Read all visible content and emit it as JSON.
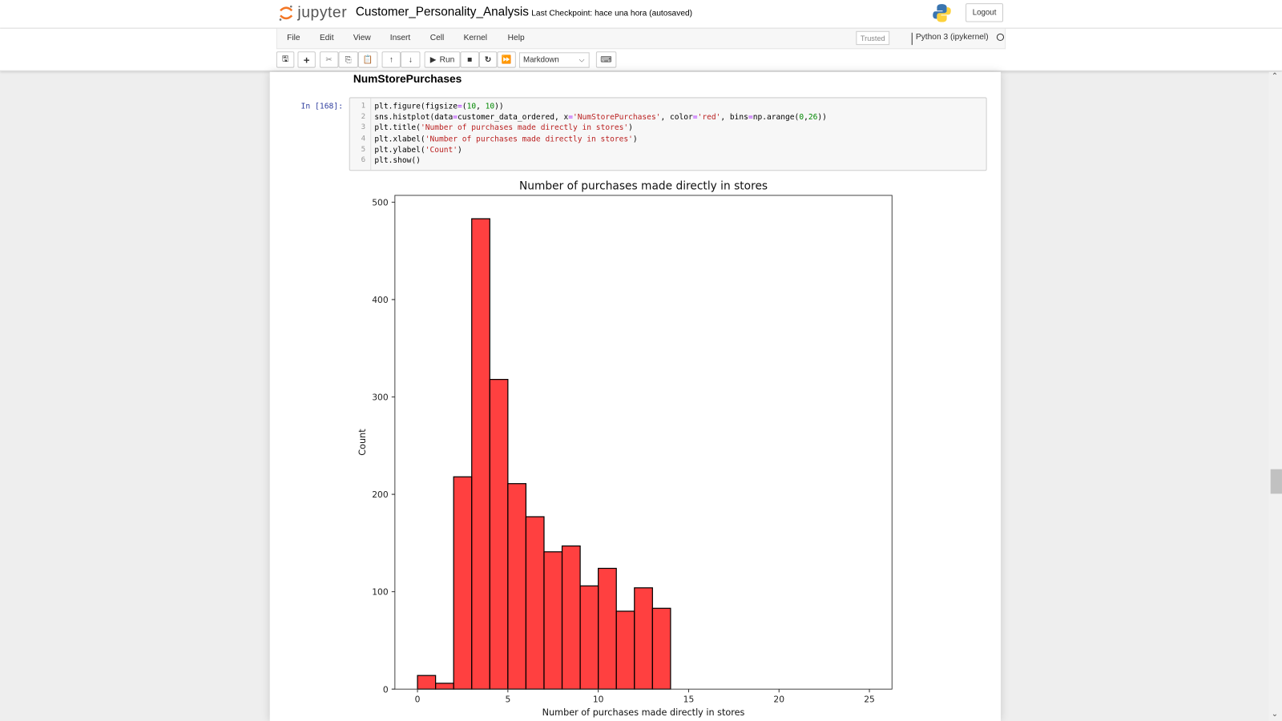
{
  "header": {
    "logo_text": "jupyter",
    "notebook_name": "Customer_Personality_Analysis",
    "checkpoint": "Last Checkpoint: hace una hora  (autosaved)",
    "logout": "Logout"
  },
  "menu": {
    "items": [
      "File",
      "Edit",
      "View",
      "Insert",
      "Cell",
      "Kernel",
      "Help"
    ],
    "trusted": "Trusted",
    "kernel": "Python 3 (ipykernel)"
  },
  "toolbar": {
    "run_label": "Run",
    "cell_type": "Markdown",
    "icons": [
      "save-icon",
      "plus-icon",
      "cut-icon",
      "copy-icon",
      "paste-icon",
      "arrow-up-icon",
      "arrow-down-icon",
      "run-icon",
      "stop-icon",
      "restart-icon",
      "fast-forward-icon",
      "keyboard-icon"
    ]
  },
  "notebook": {
    "markdown_heading": "NumStorePurchases",
    "prompt": "In [168]:",
    "code_lines": [
      [
        [
          "plt.figure(figsize",
          ""
        ],
        [
          "=",
          "op"
        ],
        [
          "(",
          ""
        ],
        [
          "10",
          "num"
        ],
        [
          ", ",
          ""
        ],
        [
          "10",
          "num"
        ],
        [
          "))",
          ""
        ]
      ],
      [
        [
          "sns.histplot(data",
          ""
        ],
        [
          "=",
          "op"
        ],
        [
          "customer_data_ordered, x",
          ""
        ],
        [
          "=",
          "op"
        ],
        [
          "'NumStorePurchases'",
          "str"
        ],
        [
          ", color",
          ""
        ],
        [
          "=",
          "op"
        ],
        [
          "'red'",
          "str"
        ],
        [
          ", bins",
          ""
        ],
        [
          "=",
          "op"
        ],
        [
          "np.arange(",
          ""
        ],
        [
          "0",
          "num"
        ],
        [
          ",",
          ""
        ],
        [
          "26",
          "num"
        ],
        [
          "))",
          ""
        ]
      ],
      [
        [
          "plt.title(",
          ""
        ],
        [
          "'Number of purchases made directly in stores'",
          "str"
        ],
        [
          ")",
          ""
        ]
      ],
      [
        [
          "plt.xlabel(",
          ""
        ],
        [
          "'Number of purchases made directly in stores'",
          "str"
        ],
        [
          ")",
          ""
        ]
      ],
      [
        [
          "plt.ylabel(",
          ""
        ],
        [
          "'Count'",
          "str"
        ],
        [
          ")",
          ""
        ]
      ],
      [
        [
          "plt.show()",
          ""
        ]
      ]
    ]
  },
  "chart_data": {
    "type": "bar",
    "title": "Number of purchases made directly in stores",
    "xlabel": "Number of purchases made directly in stores",
    "ylabel": "Count",
    "bin_edges": [
      0,
      1,
      2,
      3,
      4,
      5,
      6,
      7,
      8,
      9,
      10,
      11,
      12,
      13,
      14
    ],
    "values": [
      14,
      6,
      218,
      483,
      318,
      211,
      177,
      141,
      147,
      106,
      124,
      80,
      104,
      83
    ],
    "xlim": [
      -1.25,
      26.25
    ],
    "ylim": [
      0,
      507
    ],
    "xticks": [
      0,
      5,
      10,
      15,
      20,
      25
    ],
    "yticks": [
      0,
      100,
      200,
      300,
      400,
      500
    ],
    "bar_color": "#ff0000",
    "bar_alpha": 0.75,
    "edge_color": "#000000",
    "grid": false
  }
}
